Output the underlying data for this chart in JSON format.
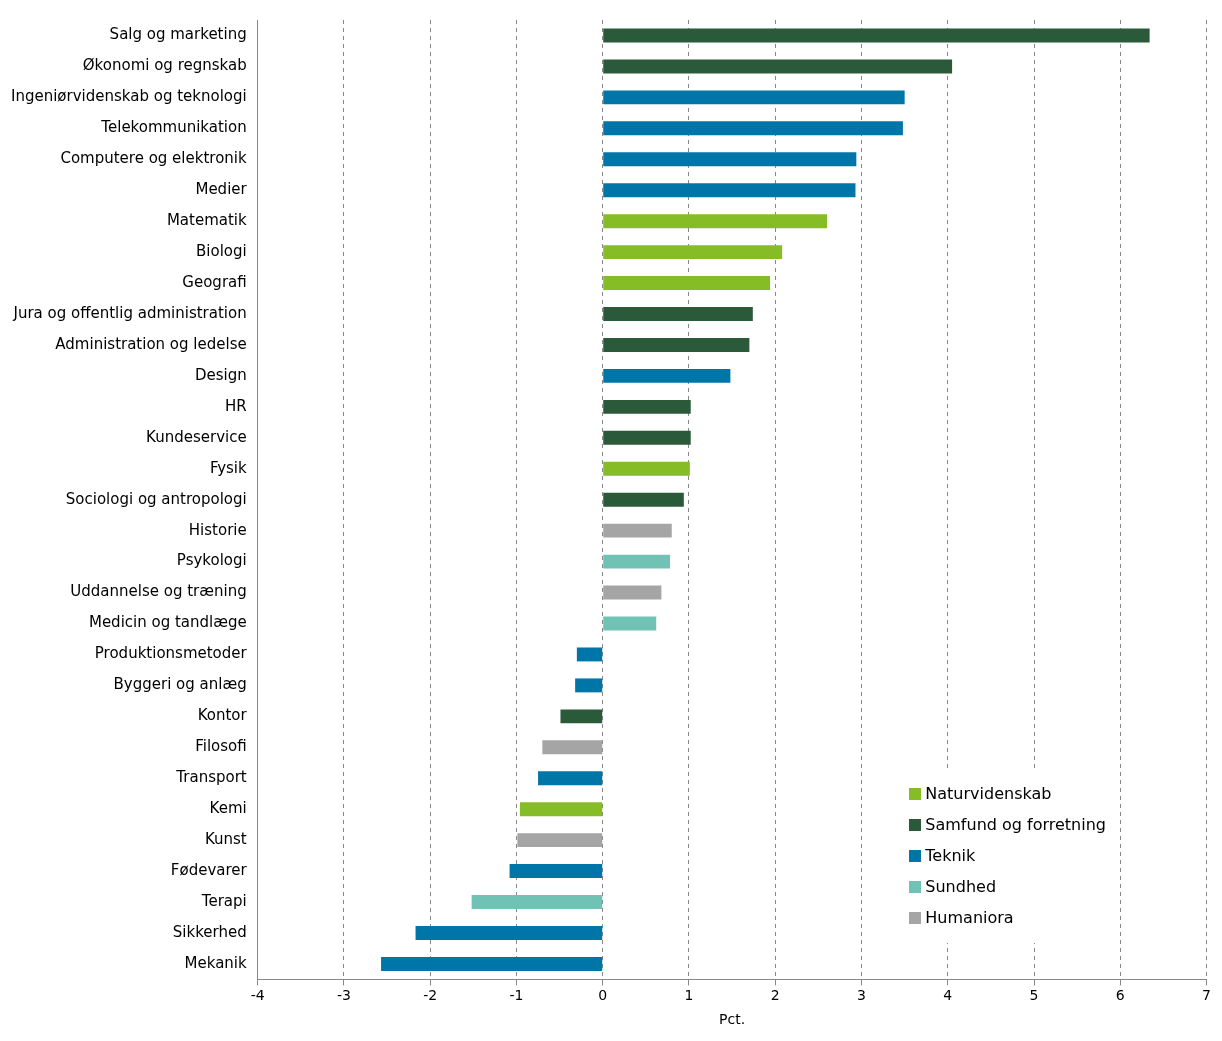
{
  "chart_data": {
    "type": "bar",
    "orientation": "horizontal",
    "xlabel": "Pct.",
    "categories": [
      "Salg og marketing",
      "Økonomi og regnskab",
      "Ingeniørvidenskab og teknologi",
      "Telekommunikation",
      "Computere og elektronik",
      "Medier",
      "Matematik",
      "Biologi",
      "Geografi",
      "Jura og offentlig administration",
      "Administration og ledelse",
      "Design",
      "HR",
      "Kundeservice",
      "Fysik",
      "Sociologi og antropologi",
      "Historie",
      "Psykologi",
      "Uddannelse og træning",
      "Medicin og tandlæge",
      "Produktionsmetoder",
      "Byggeri og anlæg",
      "Kontor",
      "Filosofi",
      "Transport",
      "Kemi",
      "Kunst",
      "Fødevarer",
      "Terapi",
      "Sikkerhed",
      "Mekanik"
    ],
    "series": [
      {
        "name": "Naturvidenskab",
        "color": "#86bc25",
        "values": [
          null,
          null,
          null,
          null,
          null,
          null,
          2.6,
          2.08,
          1.94,
          null,
          null,
          null,
          null,
          null,
          1.01,
          null,
          null,
          null,
          null,
          null,
          null,
          null,
          null,
          null,
          null,
          -0.96,
          null,
          null,
          null,
          null,
          null
        ]
      },
      {
        "name": "Samfund og forretning",
        "color": "#2b5a3a",
        "values": [
          6.34,
          4.05,
          null,
          null,
          null,
          null,
          null,
          null,
          null,
          1.74,
          1.7,
          null,
          1.02,
          1.02,
          null,
          0.94,
          null,
          null,
          null,
          null,
          null,
          null,
          -0.49,
          null,
          null,
          null,
          null,
          null,
          null,
          null,
          null
        ]
      },
      {
        "name": "Teknik",
        "color": "#0076a8",
        "values": [
          null,
          null,
          3.5,
          3.48,
          2.94,
          2.93,
          null,
          null,
          null,
          null,
          null,
          1.48,
          null,
          null,
          null,
          null,
          null,
          null,
          null,
          null,
          -0.3,
          -0.32,
          null,
          null,
          -0.75,
          null,
          null,
          -1.08,
          null,
          -2.17,
          -2.57
        ]
      },
      {
        "name": "Sundhed",
        "color": "#6fc2b4",
        "values": [
          null,
          null,
          null,
          null,
          null,
          null,
          null,
          null,
          null,
          null,
          null,
          null,
          null,
          null,
          null,
          null,
          null,
          0.78,
          null,
          0.62,
          null,
          null,
          null,
          null,
          null,
          null,
          null,
          null,
          -1.52,
          null,
          null
        ]
      },
      {
        "name": "Humaniora",
        "color": "#a5a5a5",
        "values": [
          null,
          null,
          null,
          null,
          null,
          null,
          null,
          null,
          null,
          null,
          null,
          null,
          null,
          null,
          null,
          null,
          0.8,
          null,
          0.68,
          null,
          null,
          null,
          null,
          -0.7,
          null,
          null,
          -0.99,
          null,
          null,
          null,
          null
        ]
      }
    ],
    "xlim": [
      -4,
      7
    ],
    "xticks": [
      -4,
      -3,
      -2,
      -1,
      0,
      1,
      2,
      3,
      4,
      5,
      6,
      7
    ],
    "grid": "x",
    "legend": "bottom right"
  }
}
